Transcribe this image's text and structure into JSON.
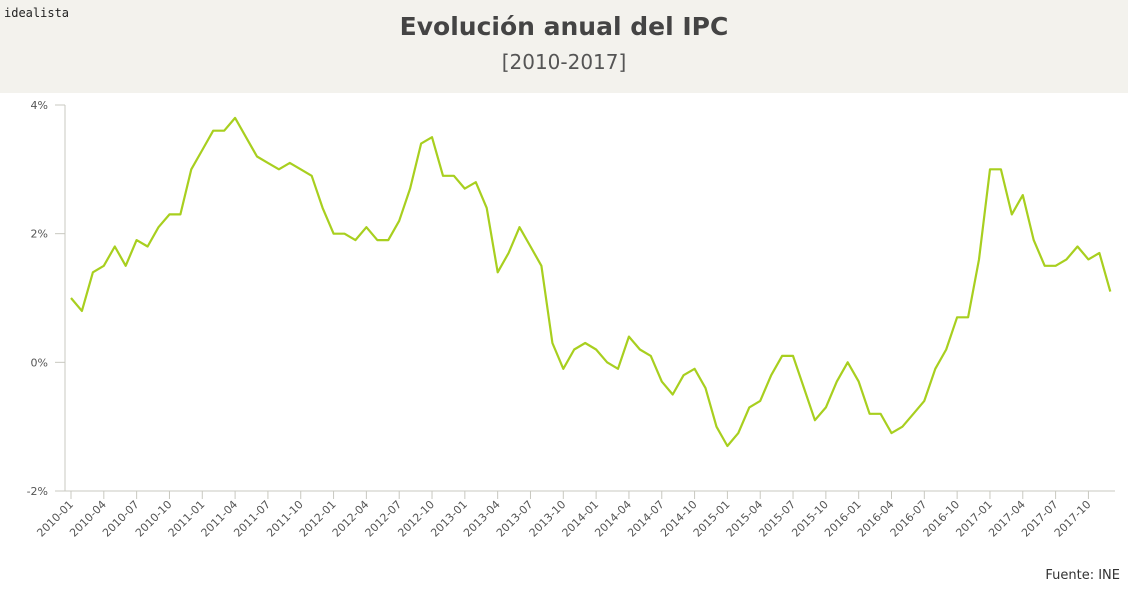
{
  "header": {
    "logo": "idealista",
    "title": "Evolución anual del IPC",
    "subtitle": "[2010-2017]"
  },
  "source": "Fuente: INE",
  "colors": {
    "line": "#a8cf1f",
    "header_bg": "#f3f2ed",
    "axis": "#c8c8c0"
  },
  "chart_data": {
    "type": "line",
    "title": "Evolución anual del IPC",
    "subtitle": "[2010-2017]",
    "xlabel": "",
    "ylabel": "",
    "ylim": [
      -2,
      4
    ],
    "y_ticks": [
      "-2%",
      "0%",
      "2%",
      "4%"
    ],
    "y_tick_values": [
      -2,
      0,
      2,
      4
    ],
    "grid": false,
    "x_start": "2010-01",
    "x_ticks": [
      "2010-01",
      "2010-04",
      "2010-07",
      "2010-10",
      "2011-01",
      "2011-04",
      "2011-07",
      "2011-10",
      "2012-01",
      "2012-04",
      "2012-07",
      "2012-10",
      "2013-01",
      "2013-04",
      "2013-07",
      "2013-10",
      "2014-01",
      "2014-04",
      "2014-07",
      "2014-10",
      "2015-01",
      "2015-04",
      "2015-07",
      "2015-10",
      "2016-01",
      "2016-04",
      "2016-07",
      "2016-10",
      "2017-01",
      "2017-04",
      "2017-07",
      "2017-10"
    ],
    "values": [
      1.0,
      0.8,
      1.4,
      1.5,
      1.8,
      1.5,
      1.9,
      1.8,
      2.1,
      2.3,
      2.3,
      3.0,
      3.3,
      3.6,
      3.6,
      3.8,
      3.5,
      3.2,
      3.1,
      3.0,
      3.1,
      3.0,
      2.9,
      2.4,
      2.0,
      2.0,
      1.9,
      2.1,
      1.9,
      1.9,
      2.2,
      2.7,
      3.4,
      3.5,
      2.9,
      2.9,
      2.7,
      2.8,
      2.4,
      1.4,
      1.7,
      2.1,
      1.8,
      1.5,
      0.3,
      -0.1,
      0.2,
      0.3,
      0.2,
      0.0,
      -0.1,
      0.4,
      0.2,
      0.1,
      -0.3,
      -0.5,
      -0.2,
      -0.1,
      -0.4,
      -1.0,
      -1.3,
      -1.1,
      -0.7,
      -0.6,
      -0.2,
      0.1,
      0.1,
      -0.4,
      -0.9,
      -0.7,
      -0.3,
      0.0,
      -0.3,
      -0.8,
      -0.8,
      -1.1,
      -1.0,
      -0.8,
      -0.6,
      -0.1,
      0.2,
      0.7,
      0.7,
      1.6,
      3.0,
      3.0,
      2.3,
      2.6,
      1.9,
      1.5,
      1.5,
      1.6,
      1.8,
      1.6,
      1.7,
      1.1
    ]
  }
}
